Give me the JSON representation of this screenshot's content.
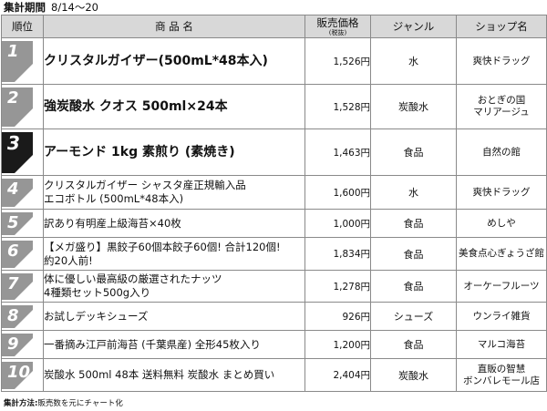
{
  "period": {
    "label": "集計期間",
    "value": "8/14〜20"
  },
  "headers": {
    "rank": "順位",
    "name": "商 品 名",
    "price": "販売価格",
    "price_sub": "(税抜)",
    "genre": "ジャンル",
    "shop": "ショップ名"
  },
  "rows": [
    {
      "rank": "1",
      "name_lines": [
        "クリスタルガイザー(500mL*48本入)"
      ],
      "price": "1,526円",
      "genre": "水",
      "shop_lines": [
        "爽快ドラッグ"
      ]
    },
    {
      "rank": "2",
      "name_lines": [
        "強炭酸水 クオス 500ml×24本"
      ],
      "price": "1,528円",
      "genre": "炭酸水",
      "shop_lines": [
        "おとぎの国",
        "マリアージュ"
      ]
    },
    {
      "rank": "3",
      "name_lines": [
        "アーモンド 1kg 素煎り (素焼き)"
      ],
      "price": "1,463円",
      "genre": "食品",
      "shop_lines": [
        "自然の館"
      ]
    },
    {
      "rank": "4",
      "name_lines": [
        "クリスタルガイザー シャスタ産正規輸入品",
        "エコボトル (500mL*48本入)"
      ],
      "price": "1,600円",
      "genre": "水",
      "shop_lines": [
        "爽快ドラッグ"
      ]
    },
    {
      "rank": "5",
      "name_lines": [
        "訳あり有明産上級海苔×40枚"
      ],
      "price": "1,000円",
      "genre": "食品",
      "shop_lines": [
        "めしや"
      ]
    },
    {
      "rank": "6",
      "name_lines": [
        "【メガ盛り】黒餃子60個本餃子60個! 合計120個!",
        "約20人前!"
      ],
      "price": "1,834円",
      "genre": "食品",
      "shop_lines": [
        "美食点心ぎょうざ館"
      ]
    },
    {
      "rank": "7",
      "name_lines": [
        "体に優しい最高級の厳選されたナッツ",
        "4種類セット500g入り"
      ],
      "price": "1,278円",
      "genre": "食品",
      "shop_lines": [
        "オーケーフルーツ"
      ]
    },
    {
      "rank": "8",
      "name_lines": [
        "お試しデッキシューズ"
      ],
      "price": "926円",
      "genre": "シューズ",
      "shop_lines": [
        "ウンライ雑貨"
      ]
    },
    {
      "rank": "9",
      "name_lines": [
        "一番摘み江戸前海苔 (千葉県産) 全形45枚入り"
      ],
      "price": "1,200円",
      "genre": "食品",
      "shop_lines": [
        "マルコ海苔"
      ]
    },
    {
      "rank": "10",
      "name_lines": [
        "炭酸水 500ml 48本 送料無料 炭酸水 まとめ買い"
      ],
      "price": "2,404円",
      "genre": "炭酸水",
      "shop_lines": [
        "直販の智慧",
        "ボンバレモール店"
      ]
    }
  ],
  "note": {
    "label": "集計方法:",
    "value": "販売数を元にチャート化"
  },
  "colors": {
    "badge_gray": "#969696",
    "badge_black": "#1a1a1a",
    "header_bg": "#d8d8d8",
    "border": "#8a8a8a"
  }
}
